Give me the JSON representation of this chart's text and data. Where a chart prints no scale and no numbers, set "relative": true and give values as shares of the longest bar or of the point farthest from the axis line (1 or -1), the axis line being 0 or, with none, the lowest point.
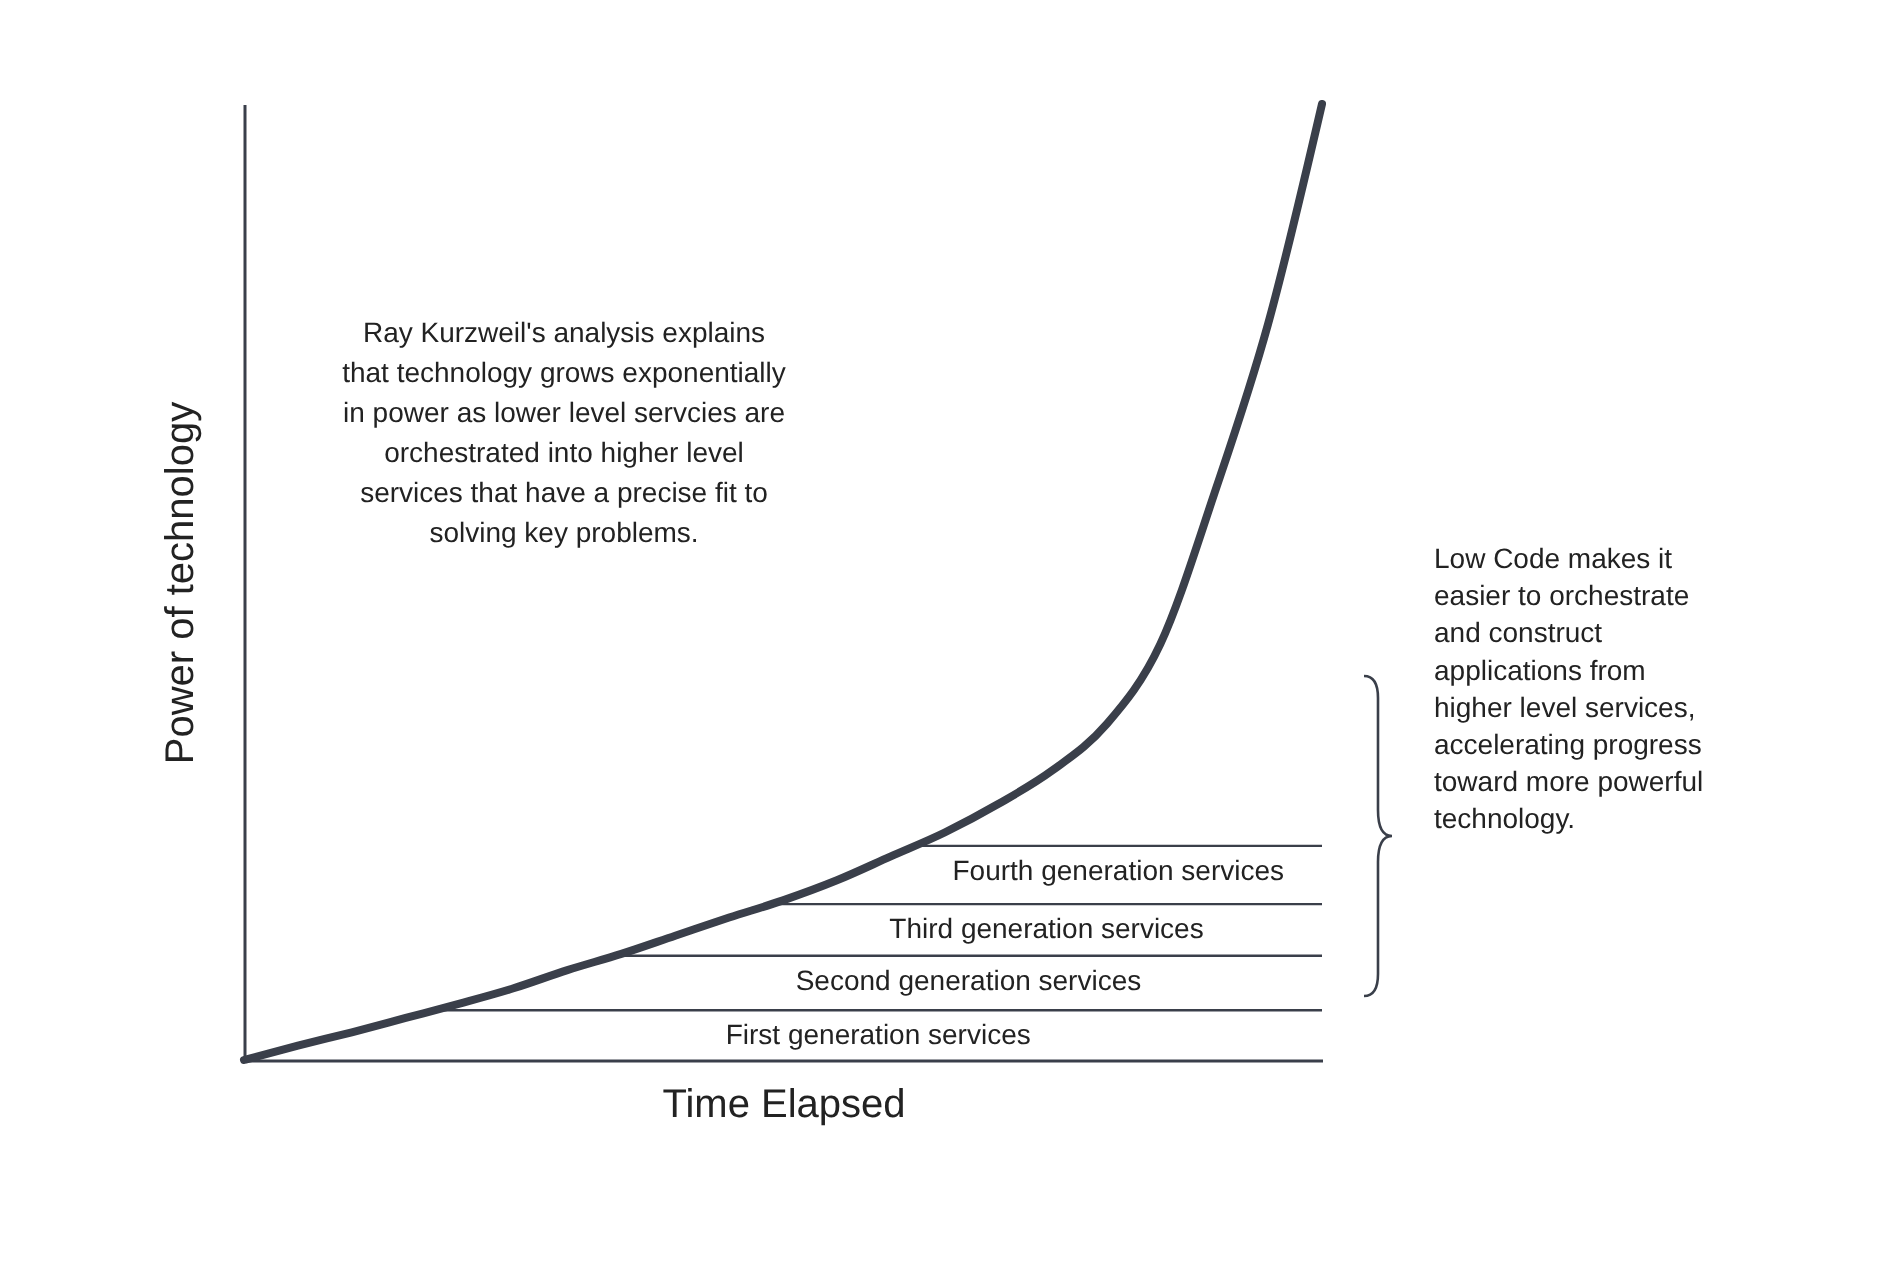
{
  "chart_data": {
    "type": "line",
    "relative": true,
    "xlabel": "Time Elapsed",
    "ylabel": "Power of technology",
    "categories": [
      null,
      null,
      null,
      null,
      null,
      null,
      null,
      null,
      null,
      null,
      null,
      null,
      null,
      null,
      null,
      null,
      null,
      null,
      null,
      null,
      null
    ],
    "series": [
      {
        "color": "#3a3f4a",
        "values": [
          0,
          0.015,
          0.029,
          0.044,
          0.059,
          0.075,
          0.094,
          0.111,
          0.13,
          0.149,
          0.167,
          0.188,
          0.213,
          0.238,
          0.268,
          0.303,
          0.351,
          0.435,
          0.592,
          0.77,
          1
        ]
      }
    ],
    "ref_lines": [
      {
        "axis": "y",
        "value": 0.052,
        "label": "First generation services",
        "color": "#3a3f4a"
      },
      {
        "axis": "y",
        "value": 0.109,
        "label": "Second generation services",
        "color": "#3a3f4a"
      },
      {
        "axis": "y",
        "value": 0.163,
        "label": "Third generation services",
        "color": "#3a3f4a"
      },
      {
        "axis": "y",
        "value": 0.224,
        "label": "Fourth generation services",
        "color": "#3a3f4a"
      }
    ],
    "annotations": [
      "Ray Kurzweil's analysis explains that technology grows exponentially in power as lower level servcies are orchestrated into higher level services that have a precise fit to solving key problems.",
      "Low Code makes it easier to orchestrate and construct applications from higher level services, accelerating progress toward more powerful technology."
    ],
    "grid": false,
    "legend": false,
    "line_style": "solid",
    "marker": "none"
  }
}
